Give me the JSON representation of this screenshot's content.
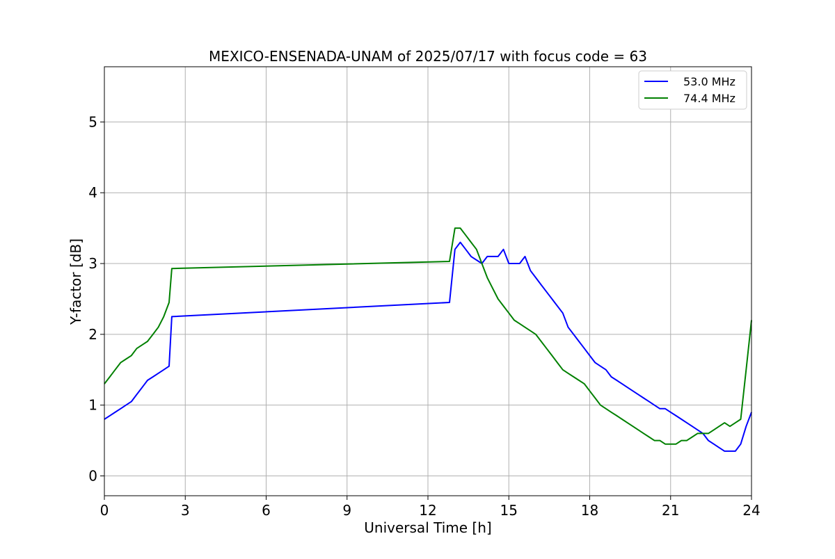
{
  "chart_data": {
    "type": "line",
    "title": "MEXICO-ENSENADA-UNAM of 2025/07/17 with focus code = 63",
    "xlabel": "Universal Time [h]",
    "ylabel": "Y-factor [dB]",
    "xlim": [
      0,
      24
    ],
    "ylim": [
      -0.28,
      5.78
    ],
    "xticks": [
      0,
      3,
      6,
      9,
      12,
      15,
      18,
      21,
      24
    ],
    "yticks": [
      0,
      1,
      2,
      3,
      4,
      5
    ],
    "xtick_labels": [
      "0",
      "3",
      "6",
      "9",
      "12",
      "15",
      "18",
      "21",
      "24"
    ],
    "ytick_labels": [
      "0",
      "1",
      "2",
      "3",
      "4",
      "5"
    ],
    "grid": true,
    "legend_position": "top-right",
    "series": [
      {
        "name": "53.0 MHz",
        "color": "#0000ff",
        "x": [
          0.0,
          0.2,
          0.4,
          0.6,
          0.8,
          1.0,
          1.2,
          1.4,
          1.6,
          1.8,
          2.0,
          2.2,
          2.4,
          2.5,
          12.8,
          13.0,
          13.2,
          13.4,
          13.6,
          13.8,
          14.0,
          14.2,
          14.4,
          14.6,
          14.8,
          15.0,
          15.2,
          15.4,
          15.6,
          15.8,
          16.0,
          16.2,
          16.4,
          16.6,
          16.8,
          17.0,
          17.2,
          17.4,
          17.6,
          17.8,
          18.0,
          18.2,
          18.4,
          18.6,
          18.8,
          19.0,
          19.2,
          19.4,
          19.6,
          19.8,
          20.0,
          20.2,
          20.4,
          20.6,
          20.8,
          21.0,
          21.2,
          21.4,
          21.6,
          21.8,
          22.0,
          22.2,
          22.4,
          22.6,
          22.8,
          23.0,
          23.2,
          23.4,
          23.6,
          23.8,
          24.0
        ],
        "y": [
          0.8,
          0.85,
          0.9,
          0.95,
          1.0,
          1.05,
          1.15,
          1.25,
          1.35,
          1.4,
          1.45,
          1.5,
          1.55,
          2.25,
          2.45,
          3.2,
          3.3,
          3.2,
          3.1,
          3.05,
          3.0,
          3.1,
          3.1,
          3.1,
          3.2,
          3.0,
          3.0,
          3.0,
          3.1,
          2.9,
          2.8,
          2.7,
          2.6,
          2.5,
          2.4,
          2.3,
          2.1,
          2.0,
          1.9,
          1.8,
          1.7,
          1.6,
          1.55,
          1.5,
          1.4,
          1.35,
          1.3,
          1.25,
          1.2,
          1.15,
          1.1,
          1.05,
          1.0,
          0.95,
          0.95,
          0.9,
          0.85,
          0.8,
          0.75,
          0.7,
          0.65,
          0.6,
          0.5,
          0.45,
          0.4,
          0.35,
          0.35,
          0.35,
          0.45,
          0.7,
          0.9
        ]
      },
      {
        "name": "74.4 MHz",
        "color": "#008000",
        "x": [
          0.0,
          0.2,
          0.4,
          0.6,
          0.8,
          1.0,
          1.2,
          1.4,
          1.6,
          1.8,
          2.0,
          2.2,
          2.4,
          2.5,
          12.8,
          13.0,
          13.2,
          13.4,
          13.6,
          13.8,
          14.0,
          14.2,
          14.4,
          14.6,
          14.8,
          15.0,
          15.2,
          15.4,
          15.6,
          15.8,
          16.0,
          16.2,
          16.4,
          16.6,
          16.8,
          17.0,
          17.2,
          17.4,
          17.6,
          17.8,
          18.0,
          18.2,
          18.4,
          18.6,
          18.8,
          19.0,
          19.2,
          19.4,
          19.6,
          19.8,
          20.0,
          20.2,
          20.4,
          20.6,
          20.8,
          21.0,
          21.2,
          21.4,
          21.6,
          21.8,
          22.0,
          22.2,
          22.4,
          22.6,
          22.8,
          23.0,
          23.2,
          23.4,
          23.6,
          23.8,
          24.0
        ],
        "y": [
          1.3,
          1.4,
          1.5,
          1.6,
          1.65,
          1.7,
          1.8,
          1.85,
          1.9,
          2.0,
          2.1,
          2.25,
          2.45,
          2.93,
          3.03,
          3.5,
          3.5,
          3.4,
          3.3,
          3.2,
          3.0,
          2.8,
          2.65,
          2.5,
          2.4,
          2.3,
          2.2,
          2.15,
          2.1,
          2.05,
          2.0,
          1.9,
          1.8,
          1.7,
          1.6,
          1.5,
          1.45,
          1.4,
          1.35,
          1.3,
          1.2,
          1.1,
          1.0,
          0.95,
          0.9,
          0.85,
          0.8,
          0.75,
          0.7,
          0.65,
          0.6,
          0.55,
          0.5,
          0.5,
          0.45,
          0.45,
          0.45,
          0.5,
          0.5,
          0.55,
          0.6,
          0.6,
          0.6,
          0.65,
          0.7,
          0.75,
          0.7,
          0.75,
          0.8,
          1.5,
          2.2
        ]
      }
    ]
  }
}
